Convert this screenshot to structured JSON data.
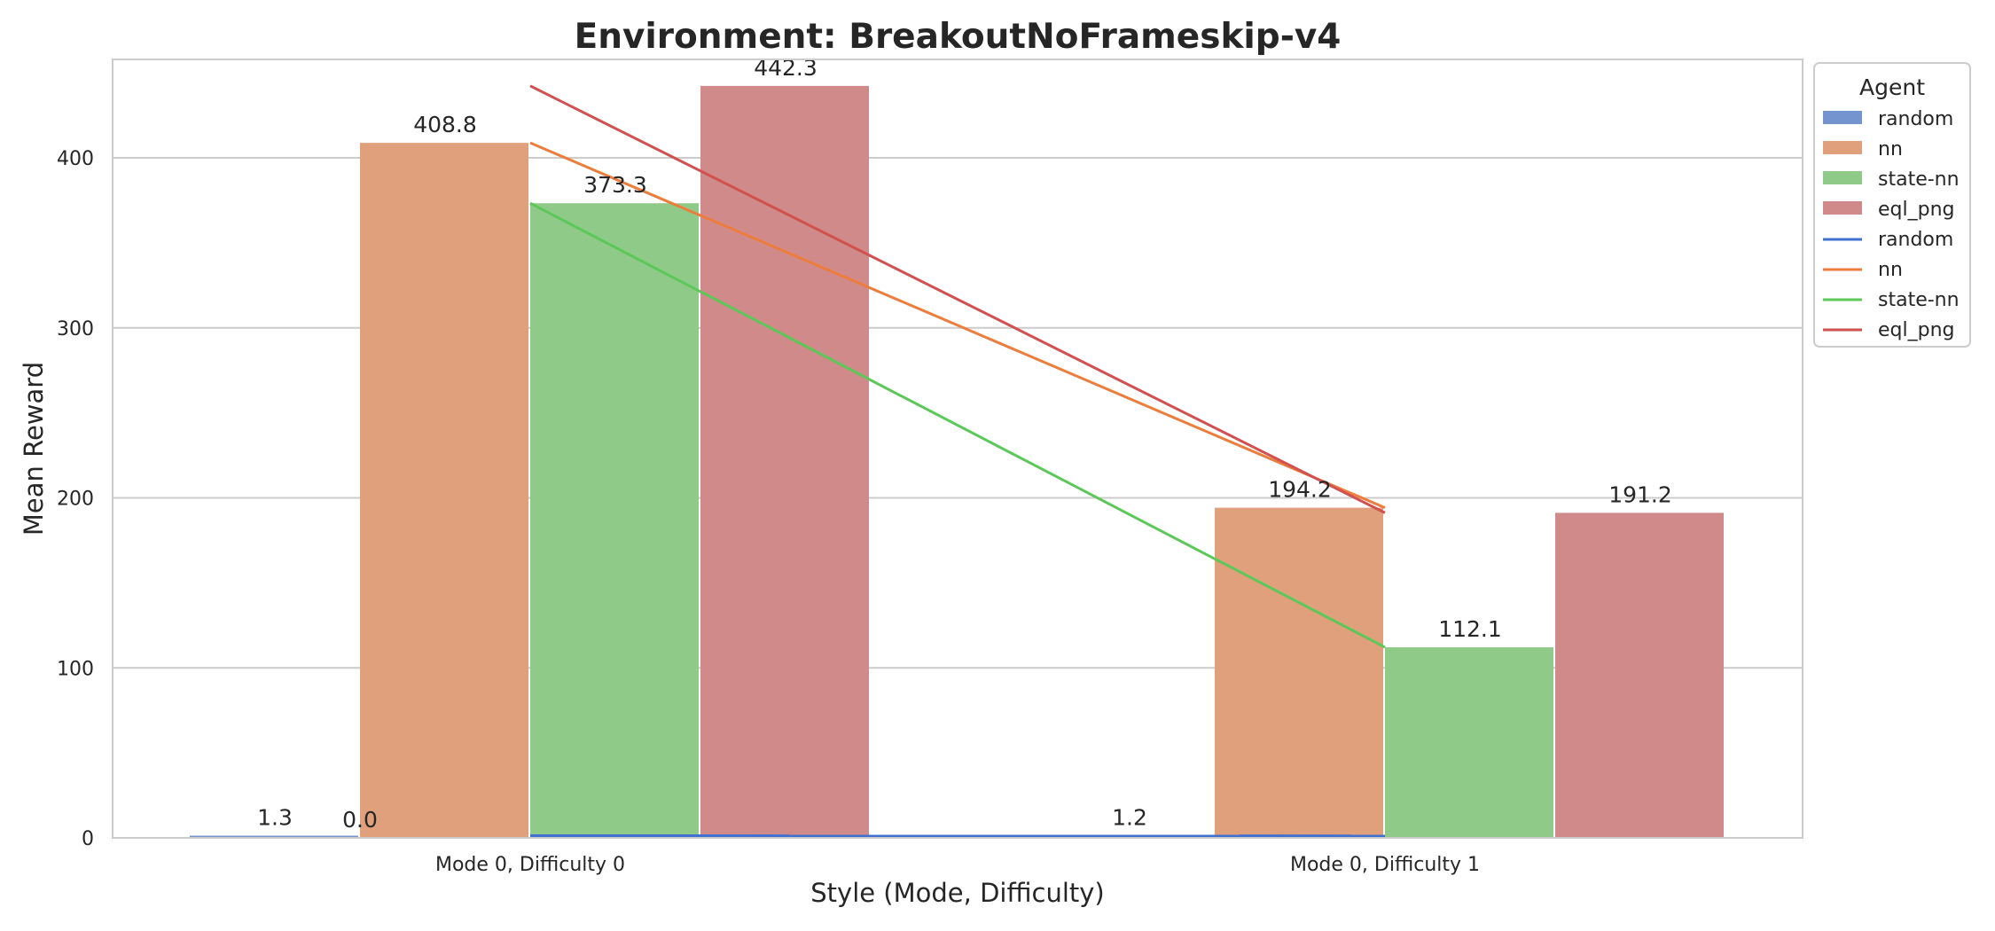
{
  "chart_data": {
    "type": "bar",
    "title": "Environment: BreakoutNoFrameskip-v4",
    "xlabel": "Style (Mode, Difficulty)",
    "ylabel": "Mean Reward",
    "categories": [
      "Mode 0, Difficulty 0",
      "Mode 0, Difficulty 1"
    ],
    "ylim": [
      0,
      465
    ],
    "yticks": [
      0,
      100,
      200,
      300,
      400
    ],
    "grid": true,
    "legend": {
      "title": "Agent",
      "placement": "outside-top-right"
    },
    "series": [
      {
        "name": "random",
        "values": [
          1.3,
          1.2
        ],
        "bar_color": "#7494cf",
        "line_color": "#4070d0"
      },
      {
        "name": "nn",
        "values": [
          408.8,
          194.2
        ],
        "bar_color": "#e0a07b",
        "line_color": "#ec7d3c"
      },
      {
        "name": "state-nn",
        "values": [
          373.3,
          112.1
        ],
        "bar_color": "#90ca88",
        "line_color": "#5cc85a"
      },
      {
        "name": "eql_png",
        "values": [
          442.3,
          191.2
        ],
        "bar_color": "#d18a8a",
        "line_color": "#d15050"
      }
    ],
    "annotations": [
      {
        "text": "0.0",
        "anchor_category": "Mode 0, Difficulty 0",
        "series": "nn",
        "value": 0
      }
    ]
  }
}
